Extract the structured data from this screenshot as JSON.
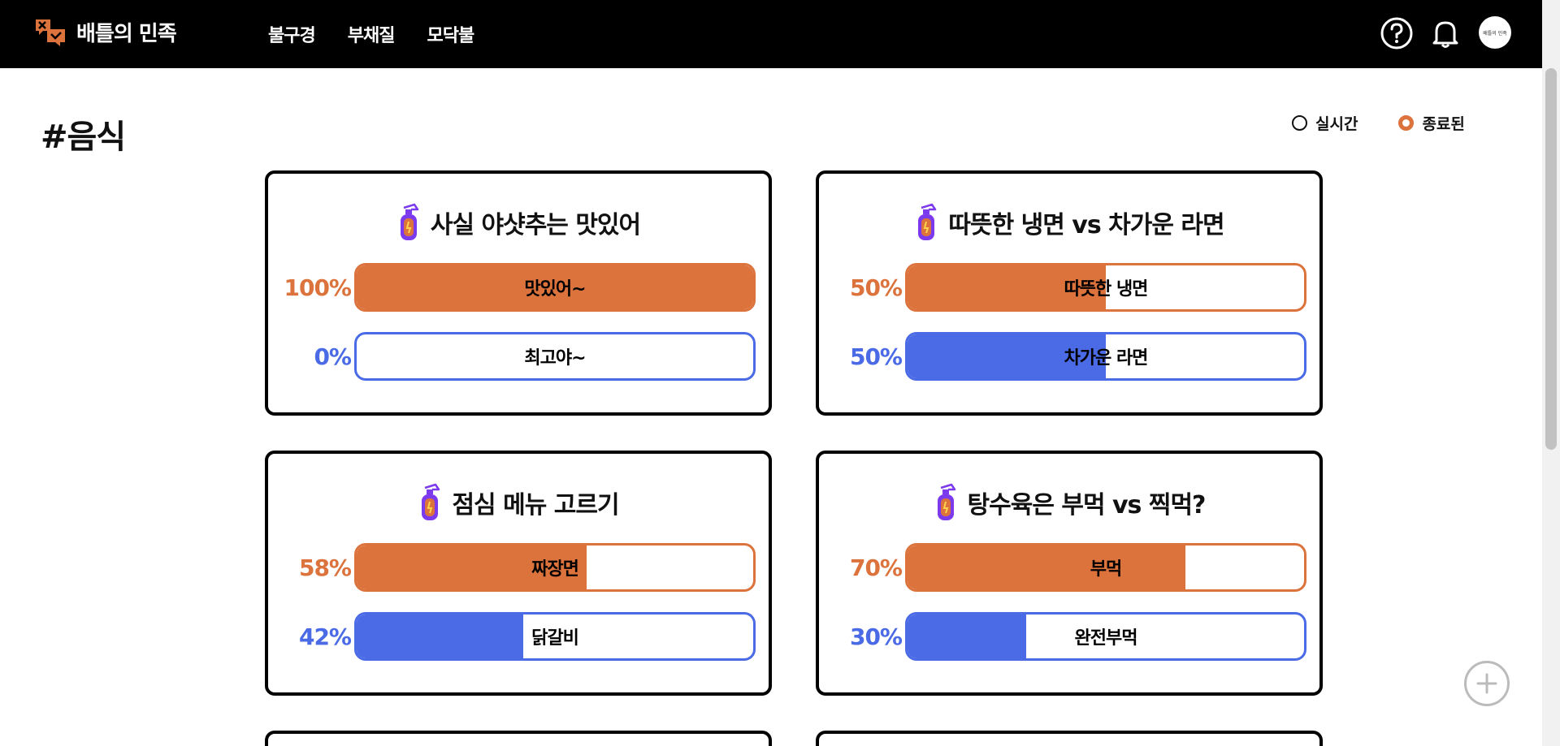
{
  "header": {
    "logo_text": "배틀의 민족",
    "nav": [
      "불구경",
      "부채질",
      "모닥불"
    ],
    "avatar_text": "배틀의 민족"
  },
  "page": {
    "title": "#음식",
    "filters": [
      {
        "label": "실시간",
        "selected": false
      },
      {
        "label": "종료된",
        "selected": true
      }
    ]
  },
  "colors": {
    "accent_orange": "#dc733d",
    "accent_blue": "#4a6ae6"
  },
  "icons": {
    "header_help": "help-circle-icon",
    "header_bell": "bell-icon",
    "card": "fire-extinguisher-icon",
    "add": "plus-icon"
  },
  "cards": [
    {
      "title": "사실 야샷추는 맛있어",
      "options": [
        {
          "percent_text": "100%",
          "label": "맛있어~",
          "fill": 1.0
        },
        {
          "percent_text": "0%",
          "label": "최고야~",
          "fill": 0.0
        }
      ]
    },
    {
      "title": "따뜻한 냉면 vs 차가운 라면",
      "options": [
        {
          "percent_text": "50%",
          "label": "따뜻한 냉면",
          "fill": 0.5
        },
        {
          "percent_text": "50%",
          "label": "차가운 라면",
          "fill": 0.5
        }
      ]
    },
    {
      "title": "점심 메뉴 고르기",
      "options": [
        {
          "percent_text": "58%",
          "label": "짜장면",
          "fill": 0.58
        },
        {
          "percent_text": "42%",
          "label": "닭갈비",
          "fill": 0.42
        }
      ]
    },
    {
      "title": "탕수육은 부먹 vs 찍먹?",
      "options": [
        {
          "percent_text": "70%",
          "label": "부먹",
          "fill": 0.7
        },
        {
          "percent_text": "30%",
          "label": "완전부먹",
          "fill": 0.3
        }
      ]
    }
  ]
}
